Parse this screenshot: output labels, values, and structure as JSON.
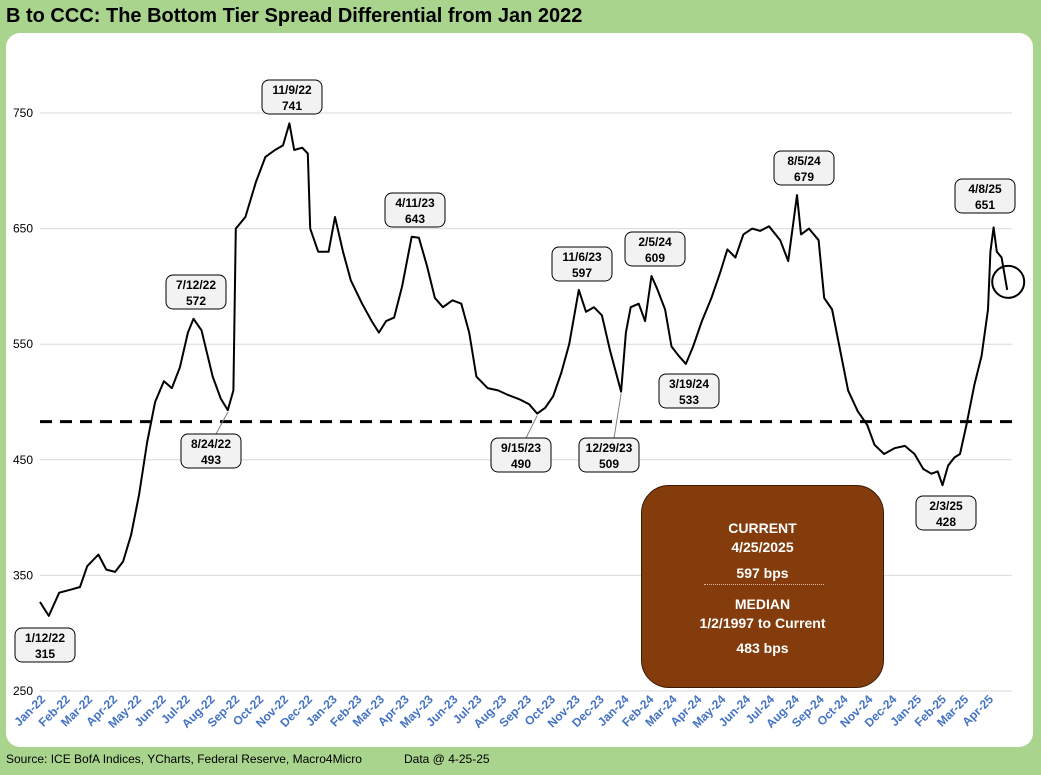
{
  "title": "B to CCC: The Bottom Tier Spread Differential from Jan 2022",
  "footer": {
    "source": "Source: ICE BofA Indices, YCharts, Federal Reserve, Macro4Micro",
    "data_date": "Data @ 4-25-25"
  },
  "info_box": {
    "current_label": "CURRENT",
    "current_date": "4/25/2025",
    "current_value": "597 bps",
    "median_label": "MEDIAN",
    "median_range": "1/2/1997 to Current",
    "median_value": "483 bps"
  },
  "colors": {
    "background": "#a9d48e",
    "plot_bg": "#ffffff",
    "line": "#000000",
    "box_fill": "#843c0c",
    "box_text": "#ffffff",
    "callout_fill": "#f2f2f2",
    "grid": "#d9d9d9"
  },
  "chart_data": {
    "type": "line",
    "title": "B to CCC: The Bottom Tier Spread Differential from Jan 2022",
    "xlabel": "",
    "ylabel": "",
    "ylim": [
      250,
      750
    ],
    "yticks": [
      250,
      350,
      450,
      550,
      650,
      750
    ],
    "grid": true,
    "x_categories": [
      "Jan-22",
      "Feb-22",
      "Mar-22",
      "Apr-22",
      "May-22",
      "Jun-22",
      "Jul-22",
      "Aug-22",
      "Sep-22",
      "Oct-22",
      "Nov-22",
      "Dec-22",
      "Jan-23",
      "Feb-23",
      "Mar-23",
      "Apr-23",
      "May-23",
      "Jun-23",
      "Jul-23",
      "Aug-23",
      "Sep-23",
      "Oct-23",
      "Nov-23",
      "Dec-23",
      "Jan-24",
      "Feb-24",
      "Mar-24",
      "Apr-24",
      "May-24",
      "Jun-24",
      "Jul-24",
      "Aug-24",
      "Sep-24",
      "Oct-24",
      "Nov-24",
      "Dec-24",
      "Jan-25",
      "Feb-25",
      "Mar-25",
      "Apr-25"
    ],
    "median_line": 483,
    "series": [
      {
        "points": [
          [
            "2022-01-01",
            327
          ],
          [
            "2022-01-12",
            315
          ],
          [
            "2022-01-25",
            335
          ],
          [
            "2022-02-10",
            338
          ],
          [
            "2022-02-20",
            340
          ],
          [
            "2022-03-01",
            358
          ],
          [
            "2022-03-15",
            368
          ],
          [
            "2022-03-25",
            355
          ],
          [
            "2022-04-05",
            353
          ],
          [
            "2022-04-15",
            362
          ],
          [
            "2022-04-25",
            385
          ],
          [
            "2022-05-05",
            420
          ],
          [
            "2022-05-15",
            465
          ],
          [
            "2022-05-25",
            500
          ],
          [
            "2022-06-05",
            518
          ],
          [
            "2022-06-15",
            512
          ],
          [
            "2022-06-25",
            530
          ],
          [
            "2022-07-05",
            560
          ],
          [
            "2022-07-12",
            572
          ],
          [
            "2022-07-22",
            562
          ],
          [
            "2022-08-05",
            522
          ],
          [
            "2022-08-15",
            503
          ],
          [
            "2022-08-24",
            493
          ],
          [
            "2022-08-31",
            510
          ],
          [
            "2022-09-03",
            650
          ],
          [
            "2022-09-15",
            660
          ],
          [
            "2022-09-28",
            690
          ],
          [
            "2022-10-10",
            712
          ],
          [
            "2022-10-22",
            718
          ],
          [
            "2022-11-01",
            722
          ],
          [
            "2022-11-09",
            741
          ],
          [
            "2022-11-15",
            718
          ],
          [
            "2022-11-25",
            720
          ],
          [
            "2022-12-02",
            715
          ],
          [
            "2022-12-05",
            650
          ],
          [
            "2022-12-15",
            630
          ],
          [
            "2022-12-28",
            630
          ],
          [
            "2023-01-05",
            660
          ],
          [
            "2023-01-15",
            630
          ],
          [
            "2023-01-25",
            605
          ],
          [
            "2023-02-08",
            585
          ],
          [
            "2023-02-20",
            570
          ],
          [
            "2023-03-01",
            560
          ],
          [
            "2023-03-10",
            570
          ],
          [
            "2023-03-20",
            573
          ],
          [
            "2023-03-30",
            600
          ],
          [
            "2023-04-11",
            643
          ],
          [
            "2023-04-20",
            642
          ],
          [
            "2023-04-30",
            618
          ],
          [
            "2023-05-10",
            590
          ],
          [
            "2023-05-20",
            582
          ],
          [
            "2023-06-01",
            588
          ],
          [
            "2023-06-12",
            585
          ],
          [
            "2023-06-22",
            560
          ],
          [
            "2023-07-01",
            522
          ],
          [
            "2023-07-15",
            512
          ],
          [
            "2023-07-28",
            510
          ],
          [
            "2023-08-10",
            506
          ],
          [
            "2023-08-25",
            502
          ],
          [
            "2023-09-05",
            498
          ],
          [
            "2023-09-15",
            490
          ],
          [
            "2023-09-25",
            495
          ],
          [
            "2023-10-05",
            505
          ],
          [
            "2023-10-15",
            525
          ],
          [
            "2023-10-25",
            550
          ],
          [
            "2023-11-06",
            597
          ],
          [
            "2023-11-15",
            578
          ],
          [
            "2023-11-25",
            582
          ],
          [
            "2023-12-05",
            575
          ],
          [
            "2023-12-15",
            545
          ],
          [
            "2023-12-29",
            509
          ],
          [
            "2024-01-04",
            560
          ],
          [
            "2024-01-10",
            582
          ],
          [
            "2024-01-20",
            585
          ],
          [
            "2024-01-28",
            570
          ],
          [
            "2024-02-05",
            609
          ],
          [
            "2024-02-12",
            598
          ],
          [
            "2024-02-22",
            580
          ],
          [
            "2024-03-01",
            548
          ],
          [
            "2024-03-10",
            540
          ],
          [
            "2024-03-19",
            533
          ],
          [
            "2024-03-28",
            548
          ],
          [
            "2024-04-08",
            570
          ],
          [
            "2024-04-20",
            590
          ],
          [
            "2024-05-01",
            612
          ],
          [
            "2024-05-10",
            632
          ],
          [
            "2024-05-20",
            625
          ],
          [
            "2024-05-30",
            645
          ],
          [
            "2024-06-10",
            650
          ],
          [
            "2024-06-20",
            648
          ],
          [
            "2024-07-01",
            652
          ],
          [
            "2024-07-15",
            640
          ],
          [
            "2024-07-25",
            622
          ],
          [
            "2024-08-05",
            679
          ],
          [
            "2024-08-10",
            645
          ],
          [
            "2024-08-20",
            650
          ],
          [
            "2024-09-01",
            640
          ],
          [
            "2024-09-08",
            590
          ],
          [
            "2024-09-18",
            580
          ],
          [
            "2024-09-28",
            545
          ],
          [
            "2024-10-08",
            510
          ],
          [
            "2024-10-20",
            492
          ],
          [
            "2024-11-01",
            480
          ],
          [
            "2024-11-10",
            463
          ],
          [
            "2024-11-22",
            455
          ],
          [
            "2024-12-05",
            460
          ],
          [
            "2024-12-18",
            462
          ],
          [
            "2024-12-30",
            455
          ],
          [
            "2025-01-10",
            442
          ],
          [
            "2025-01-20",
            438
          ],
          [
            "2025-01-28",
            440
          ],
          [
            "2025-02-03",
            428
          ],
          [
            "2025-02-10",
            445
          ],
          [
            "2025-02-18",
            452
          ],
          [
            "2025-02-25",
            455
          ],
          [
            "2025-03-05",
            480
          ],
          [
            "2025-03-15",
            515
          ],
          [
            "2025-03-24",
            540
          ],
          [
            "2025-04-01",
            580
          ],
          [
            "2025-04-04",
            630
          ],
          [
            "2025-04-08",
            651
          ],
          [
            "2025-04-12",
            630
          ],
          [
            "2025-04-18",
            625
          ],
          [
            "2025-04-25",
            597
          ]
        ]
      }
    ],
    "annotations": [
      {
        "date": "2022-01-12",
        "value": 315,
        "label_date": "1/12/22",
        "label_value": "315"
      },
      {
        "date": "2022-07-12",
        "value": 572,
        "label_date": "7/12/22",
        "label_value": "572"
      },
      {
        "date": "2022-08-24",
        "value": 493,
        "label_date": "8/24/22",
        "label_value": "493"
      },
      {
        "date": "2022-11-09",
        "value": 741,
        "label_date": "11/9/22",
        "label_value": "741"
      },
      {
        "date": "2023-04-11",
        "value": 643,
        "label_date": "4/11/23",
        "label_value": "643"
      },
      {
        "date": "2023-09-15",
        "value": 490,
        "label_date": "9/15/23",
        "label_value": "490"
      },
      {
        "date": "2023-11-06",
        "value": 597,
        "label_date": "11/6/23",
        "label_value": "597"
      },
      {
        "date": "2023-12-29",
        "value": 509,
        "label_date": "12/29/23",
        "label_value": "509"
      },
      {
        "date": "2024-02-05",
        "value": 609,
        "label_date": "2/5/24",
        "label_value": "609"
      },
      {
        "date": "2024-03-19",
        "value": 533,
        "label_date": "3/19/24",
        "label_value": "533"
      },
      {
        "date": "2024-08-05",
        "value": 679,
        "label_date": "8/5/24",
        "label_value": "679"
      },
      {
        "date": "2025-02-03",
        "value": 428,
        "label_date": "2/3/25",
        "label_value": "428"
      },
      {
        "date": "2025-04-08",
        "value": 651,
        "label_date": "4/8/25",
        "label_value": "651"
      }
    ]
  }
}
